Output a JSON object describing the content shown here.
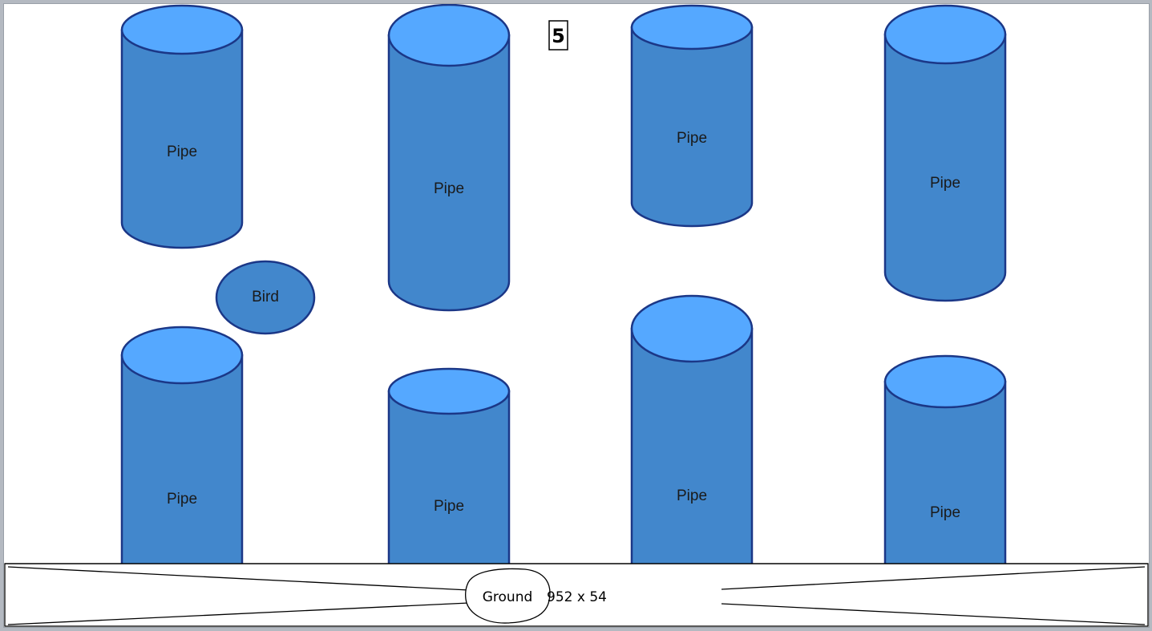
{
  "score": "5",
  "bird": {
    "label": "Bird"
  },
  "pipes": [
    {
      "label": "Pipe"
    },
    {
      "label": "Pipe"
    },
    {
      "label": "Pipe"
    },
    {
      "label": "Pipe"
    },
    {
      "label": "Pipe"
    },
    {
      "label": "Pipe"
    },
    {
      "label": "Pipe"
    },
    {
      "label": "Pipe"
    }
  ],
  "ground": {
    "label": "Ground",
    "size": "952 x 54"
  },
  "colors": {
    "pipe_body": "#4287cc",
    "pipe_cap": "#55a8ff",
    "outline": "#1b3787",
    "background": "#ffffff"
  }
}
